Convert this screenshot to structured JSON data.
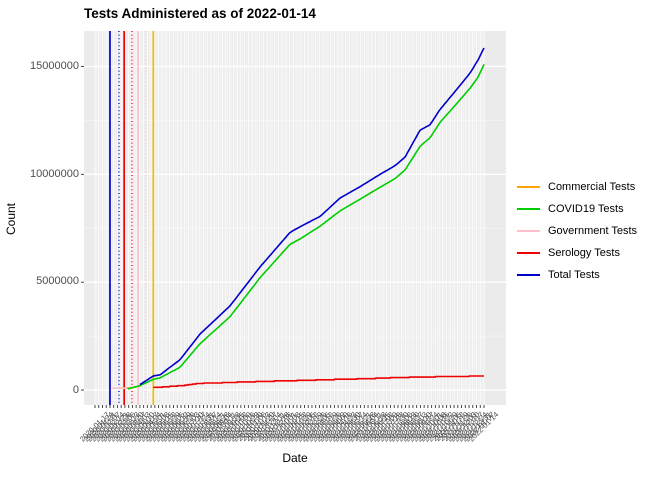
{
  "title": "Tests Administered as of 2022-01-14",
  "axes": {
    "x_title": "Date",
    "y_title": "Count"
  },
  "chart_data": {
    "type": "line",
    "title": "Tests Administered as of 2022-01-14",
    "xlabel": "Date",
    "ylabel": "Count",
    "panel_background": "#EBEBEB",
    "gridline_color": "#FFFFFF",
    "yticks": [
      0,
      5000000,
      10000000,
      15000000
    ],
    "yticks_minor": [
      2500000,
      7500000,
      12500000
    ],
    "ylim": [
      0,
      15900000
    ],
    "x_axis": {
      "tick_label_start": "2020-01-17",
      "tick_label_end": "2022-01-14",
      "tick_interval_days": 7,
      "n_ticks": 105,
      "tick_label_angle_deg": 45
    },
    "series": [
      {
        "name": "Commercial Tests",
        "color": "#FFA500",
        "points": [
          [
            7.8,
            80000
          ],
          [
            9.5,
            95000
          ],
          [
            10.8,
            140000
          ],
          [
            12.3,
            200000
          ]
        ]
      },
      {
        "name": "COVID19 Tests",
        "color": "#00CD00",
        "points": [
          [
            8.8,
            50000
          ],
          [
            12,
            200000
          ],
          [
            15.6,
            500000
          ],
          [
            17.4,
            560000
          ],
          [
            20,
            800000
          ],
          [
            22.7,
            1050000
          ],
          [
            28.1,
            2150000
          ],
          [
            36.1,
            3400000
          ],
          [
            44.1,
            5200000
          ],
          [
            52.1,
            6750000
          ],
          [
            54.8,
            7000000
          ],
          [
            60.2,
            7600000
          ],
          [
            65.5,
            8300000
          ],
          [
            70.9,
            8850000
          ],
          [
            76.2,
            9400000
          ],
          [
            80.2,
            9800000
          ],
          [
            82.9,
            10200000
          ],
          [
            86.9,
            11300000
          ],
          [
            89.6,
            11700000
          ],
          [
            92.2,
            12400000
          ],
          [
            96.3,
            13200000
          ],
          [
            100.3,
            14000000
          ],
          [
            102.4,
            14500000
          ],
          [
            104,
            15100000
          ]
        ]
      },
      {
        "name": "Government Tests",
        "color": "#FFC0CB",
        "points": [
          [
            4.5,
            80000
          ],
          [
            8.5,
            85000
          ]
        ]
      },
      {
        "name": "Serology Tests",
        "color": "#EE0000",
        "points": [
          [
            15.6,
            120000
          ],
          [
            22.7,
            200000
          ],
          [
            28.1,
            310000
          ],
          [
            38.8,
            370000
          ],
          [
            49.5,
            420000
          ],
          [
            60.2,
            470000
          ],
          [
            70.9,
            520000
          ],
          [
            81.6,
            580000
          ],
          [
            92.2,
            620000
          ],
          [
            104,
            650000
          ]
        ]
      },
      {
        "name": "Total Tests",
        "color": "#0000CD",
        "points": [
          [
            12,
            250000
          ],
          [
            15.6,
            650000
          ],
          [
            17.4,
            700000
          ],
          [
            20,
            1050000
          ],
          [
            22.7,
            1400000
          ],
          [
            28.1,
            2600000
          ],
          [
            36.1,
            3900000
          ],
          [
            44.1,
            5700000
          ],
          [
            52.1,
            7300000
          ],
          [
            54.8,
            7570000
          ],
          [
            60.2,
            8050000
          ],
          [
            65.5,
            8900000
          ],
          [
            70.9,
            9430000
          ],
          [
            76.2,
            10000000
          ],
          [
            80.2,
            10400000
          ],
          [
            82.9,
            10800000
          ],
          [
            86.9,
            12050000
          ],
          [
            89.6,
            12300000
          ],
          [
            92.2,
            13000000
          ],
          [
            96.3,
            13850000
          ],
          [
            100.3,
            14700000
          ],
          [
            102.4,
            15300000
          ],
          [
            104,
            15860000
          ]
        ]
      }
    ],
    "vlines": [
      {
        "color": "#0000CD",
        "style": "solid",
        "week_index": 4.0
      },
      {
        "color": "#0000CD",
        "style": "dotted",
        "week_index": 6.4
      },
      {
        "color": "#EE0000",
        "style": "solid",
        "week_index": 7.8
      },
      {
        "color": "#EE0000",
        "style": "dotted",
        "week_index": 9.9
      },
      {
        "color": "#FFC0CB",
        "style": "solid",
        "week_index": 11.5
      },
      {
        "color": "#FFC0CB",
        "style": "dotted",
        "week_index": 13.6
      },
      {
        "color": "#EEC100",
        "style": "solid",
        "week_index": 15.6
      }
    ],
    "legend_position": "right"
  }
}
